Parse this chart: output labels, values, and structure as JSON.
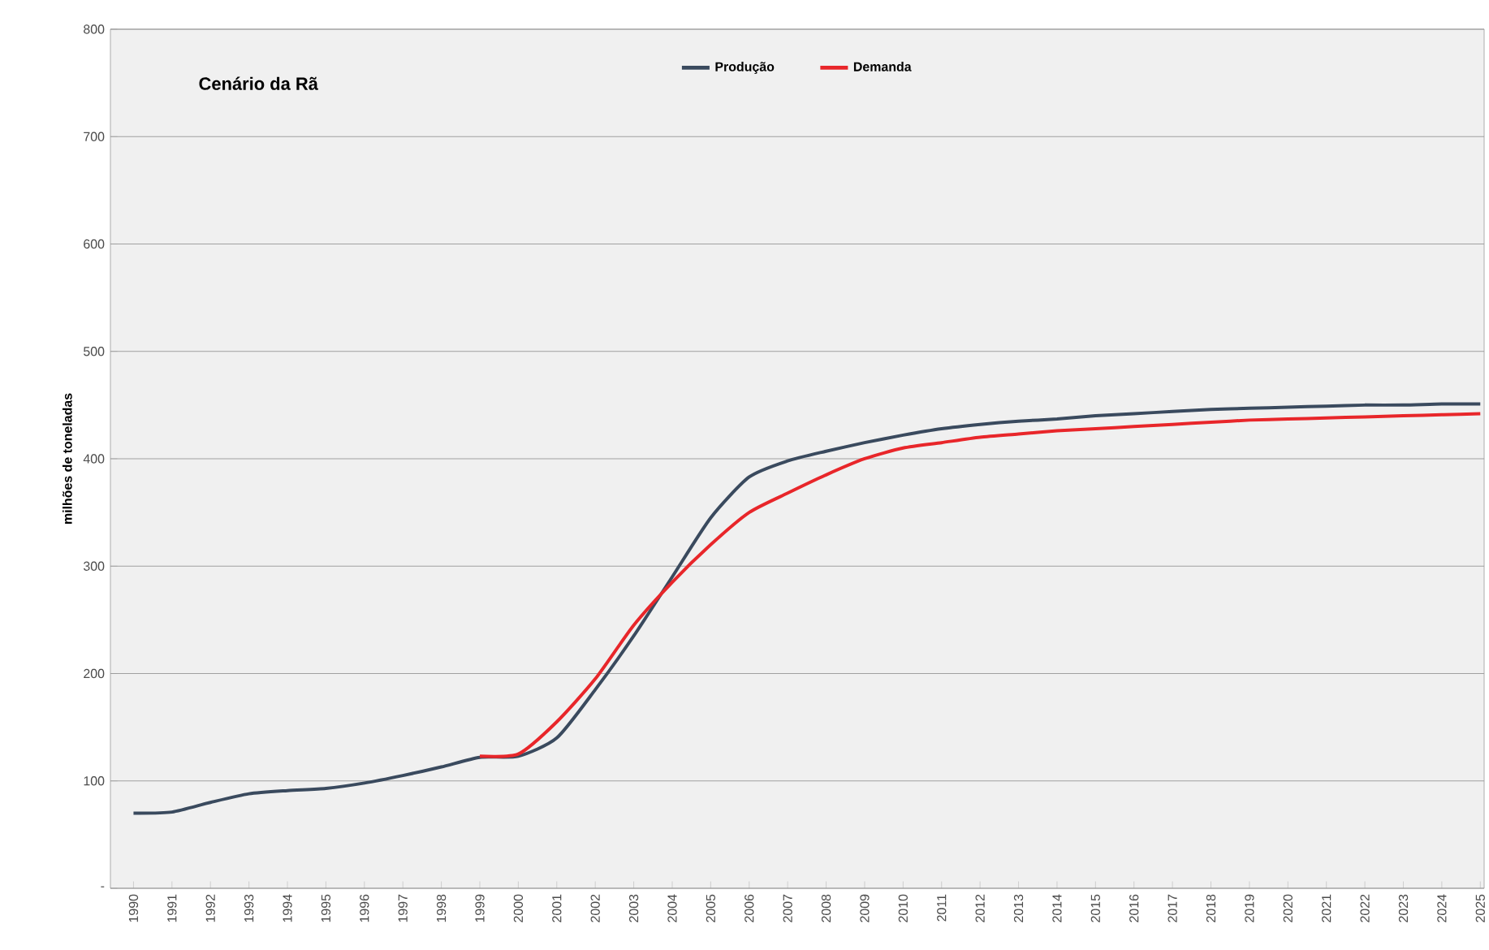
{
  "chart_data": {
    "type": "line",
    "title": "Cenário da Rã",
    "ylabel": "milhões de toneladas",
    "categories": [
      "1990",
      "1991",
      "1992",
      "1993",
      "1994",
      "1995",
      "1996",
      "1997",
      "1998",
      "1999",
      "2000",
      "2001",
      "2002",
      "2003",
      "2004",
      "2005",
      "2006",
      "2007",
      "2008",
      "2009",
      "2010",
      "2011",
      "2012",
      "2013",
      "2014",
      "2015",
      "2016",
      "2017",
      "2018",
      "2019",
      "2020",
      "2021",
      "2022",
      "2023",
      "2024",
      "2025"
    ],
    "series": [
      {
        "name": "Produção",
        "color": "#3a4a5e",
        "values": [
          70,
          71,
          80,
          88,
          91,
          93,
          98,
          105,
          113,
          122,
          123,
          140,
          185,
          235,
          290,
          345,
          383,
          398,
          407,
          415,
          422,
          428,
          432,
          435,
          437,
          440,
          442,
          444,
          446,
          447,
          448,
          449,
          450,
          450,
          451,
          451
        ]
      },
      {
        "name": "Demanda",
        "color": "#e8262a",
        "values": [
          null,
          null,
          null,
          null,
          null,
          null,
          null,
          null,
          null,
          123,
          125,
          155,
          195,
          245,
          285,
          320,
          350,
          368,
          385,
          400,
          410,
          415,
          420,
          423,
          426,
          428,
          430,
          432,
          434,
          436,
          437,
          438,
          439,
          440,
          441,
          442
        ]
      }
    ],
    "ylim": [
      0,
      800
    ],
    "yticks": [
      {
        "value": 0,
        "label": "-"
      },
      100,
      200,
      300,
      400,
      500,
      600,
      700,
      800
    ],
    "grid": "y",
    "legend": "top",
    "marker": "none",
    "line_style": "solid"
  }
}
